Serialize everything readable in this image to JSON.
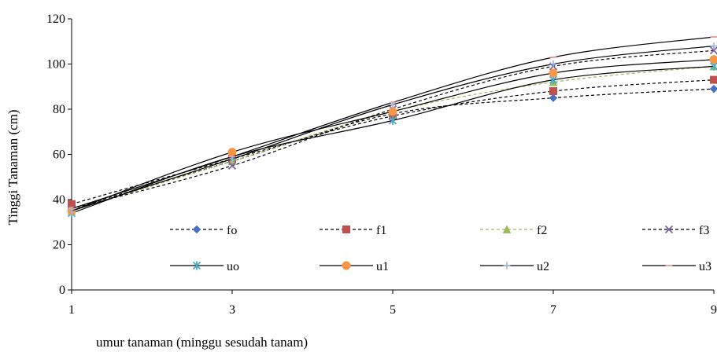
{
  "chart_data": {
    "type": "line",
    "title": "",
    "xlabel": "umur tanaman (minggu sesudah tanam)",
    "ylabel": "Tinggi Tanaman (cm)",
    "x": [
      1,
      3,
      5,
      7,
      9
    ],
    "xlim": [
      1,
      9
    ],
    "ylim": [
      0,
      120
    ],
    "x_ticks": [
      "1",
      "3",
      "5",
      "7",
      "9"
    ],
    "y_ticks": [
      "0",
      "20",
      "40",
      "60",
      "80",
      "100",
      "120"
    ],
    "grid": false,
    "legend_position": "inside-bottom",
    "series": [
      {
        "name": "fo",
        "values": [
          36,
          57,
          78,
          85,
          89
        ],
        "color": "#4472C4",
        "line_color": "#000000",
        "dash": "dashed",
        "marker": "diamond"
      },
      {
        "name": "f1",
        "values": [
          38,
          58,
          77,
          88,
          93
        ],
        "color": "#C0504D",
        "line_color": "#000000",
        "dash": "dashed",
        "marker": "square"
      },
      {
        "name": "f2",
        "values": [
          35,
          57,
          79,
          92,
          99
        ],
        "color": "#9BBB59",
        "line_color": "#9BBB59",
        "dash": "dashed",
        "marker": "triangle"
      },
      {
        "name": "f3",
        "values": [
          36,
          55,
          80,
          99,
          106
        ],
        "color": "#8064A2",
        "line_color": "#000000",
        "dash": "dashed",
        "marker": "x"
      },
      {
        "name": "uo",
        "values": [
          34,
          59,
          75,
          93,
          99
        ],
        "color": "#4BACC6",
        "line_color": "#000000",
        "dash": "solid",
        "marker": "star"
      },
      {
        "name": "u1",
        "values": [
          35,
          61,
          79,
          96,
          102
        ],
        "color": "#F79646",
        "line_color": "#000000",
        "dash": "solid",
        "marker": "circle"
      },
      {
        "name": "u2",
        "values": [
          35,
          58,
          82,
          100,
          108
        ],
        "color": "#9DB3E0",
        "line_color": "#000000",
        "dash": "solid",
        "marker": "plus"
      },
      {
        "name": "u3",
        "values": [
          36,
          59,
          83,
          103,
          112
        ],
        "color": "#E6A5A4",
        "line_color": "#000000",
        "dash": "solid",
        "marker": "dash"
      }
    ]
  }
}
